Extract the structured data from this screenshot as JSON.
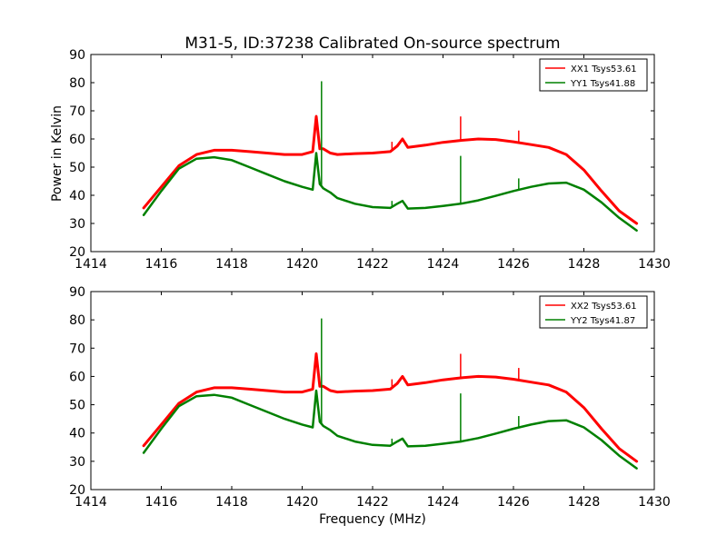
{
  "chart_data": {
    "type": "line",
    "title": "M31-5, ID:37238 Calibrated On-source spectrum",
    "xlabel": "Frequency (MHz)",
    "ylabel": "Power in Kelvin",
    "legend_placement": "top-right",
    "grid": false,
    "colors": {
      "xx": "#ff0000",
      "yy": "#008000"
    },
    "panels": [
      {
        "xlim": [
          1414,
          1430
        ],
        "ylim": [
          20,
          90
        ],
        "xticks": [
          "1414",
          "1416",
          "1418",
          "1420",
          "1422",
          "1424",
          "1426",
          "1428",
          "1430"
        ],
        "yticks": [
          "20",
          "30",
          "40",
          "50",
          "60",
          "70",
          "80",
          "90"
        ],
        "series": [
          {
            "name": "XX1 Tsys53.61",
            "color": "#ff0000",
            "x": [
              1415.5,
              1416,
              1416.5,
              1417,
              1417.5,
              1418,
              1418.5,
              1419,
              1419.5,
              1420,
              1420.3,
              1420.4,
              1420.5,
              1420.6,
              1420.8,
              1421,
              1421.5,
              1422,
              1422.5,
              1422.7,
              1422.85,
              1423,
              1423.5,
              1424,
              1424.5,
              1425,
              1425.5,
              1426,
              1426.5,
              1427,
              1427.5,
              1428,
              1428.5,
              1429,
              1429.5
            ],
            "y": [
              35.5,
              43,
              50.5,
              54.5,
              56,
              56,
              55.5,
              55,
              54.5,
              54.5,
              55.5,
              68,
              56.5,
              56.5,
              55,
              54.5,
              54.8,
              55,
              55.5,
              57.5,
              60,
              57,
              57.8,
              58.8,
              59.5,
              60,
              59.8,
              59,
              58,
              57,
              54.5,
              49,
              41.5,
              34.5,
              30
            ]
          },
          {
            "name": "YY1 Tsys41.88",
            "color": "#008000",
            "x": [
              1415.5,
              1416,
              1416.5,
              1417,
              1417.5,
              1418,
              1418.5,
              1419,
              1419.5,
              1420,
              1420.3,
              1420.4,
              1420.5,
              1420.6,
              1420.8,
              1421,
              1421.5,
              1422,
              1422.5,
              1422.7,
              1422.85,
              1423,
              1423.5,
              1424,
              1424.5,
              1425,
              1425.5,
              1426,
              1426.5,
              1427,
              1427.5,
              1428,
              1428.5,
              1429,
              1429.5
            ],
            "y": [
              33,
              41.5,
              49.5,
              53,
              53.5,
              52.5,
              50,
              47.5,
              45,
              43,
              42,
              55,
              44,
              42.5,
              41,
              39,
              37,
              35.8,
              35.5,
              37,
              38,
              35.3,
              35.5,
              36.2,
              37,
              38.2,
              39.8,
              41.5,
              43,
              44.2,
              44.5,
              42,
              37.5,
              32,
              27.5
            ]
          }
        ],
        "spikes": [
          {
            "series": 0,
            "x": 1420.4,
            "top": 68.5
          },
          {
            "series": 0,
            "x": 1422.55,
            "top": 59
          },
          {
            "series": 0,
            "x": 1424.5,
            "top": 68
          },
          {
            "series": 0,
            "x": 1426.15,
            "top": 63
          },
          {
            "series": 1,
            "x": 1420.55,
            "top": 80.5
          },
          {
            "series": 1,
            "x": 1422.55,
            "top": 38
          },
          {
            "series": 1,
            "x": 1424.5,
            "top": 54
          },
          {
            "series": 1,
            "x": 1426.15,
            "top": 46
          }
        ]
      },
      {
        "xlim": [
          1414,
          1430
        ],
        "ylim": [
          20,
          90
        ],
        "xticks": [
          "1414",
          "1416",
          "1418",
          "1420",
          "1422",
          "1424",
          "1426",
          "1428",
          "1430"
        ],
        "yticks": [
          "20",
          "30",
          "40",
          "50",
          "60",
          "70",
          "80",
          "90"
        ],
        "series": [
          {
            "name": "XX2 Tsys53.61",
            "color": "#ff0000",
            "x": [
              1415.5,
              1416,
              1416.5,
              1417,
              1417.5,
              1418,
              1418.5,
              1419,
              1419.5,
              1420,
              1420.3,
              1420.4,
              1420.5,
              1420.6,
              1420.8,
              1421,
              1421.5,
              1422,
              1422.5,
              1422.7,
              1422.85,
              1423,
              1423.5,
              1424,
              1424.5,
              1425,
              1425.5,
              1426,
              1426.5,
              1427,
              1427.5,
              1428,
              1428.5,
              1429,
              1429.5
            ],
            "y": [
              35.5,
              43,
              50.5,
              54.5,
              56,
              56,
              55.5,
              55,
              54.5,
              54.5,
              55.5,
              68,
              56.5,
              56.5,
              55,
              54.5,
              54.8,
              55,
              55.5,
              57.5,
              60,
              57,
              57.8,
              58.8,
              59.5,
              60,
              59.8,
              59,
              58,
              57,
              54.5,
              49,
              41.5,
              34.5,
              30
            ]
          },
          {
            "name": "YY2 Tsys41.87",
            "color": "#008000",
            "x": [
              1415.5,
              1416,
              1416.5,
              1417,
              1417.5,
              1418,
              1418.5,
              1419,
              1419.5,
              1420,
              1420.3,
              1420.4,
              1420.5,
              1420.6,
              1420.8,
              1421,
              1421.5,
              1422,
              1422.5,
              1422.7,
              1422.85,
              1423,
              1423.5,
              1424,
              1424.5,
              1425,
              1425.5,
              1426,
              1426.5,
              1427,
              1427.5,
              1428,
              1428.5,
              1429,
              1429.5
            ],
            "y": [
              33,
              41.5,
              49.5,
              53,
              53.5,
              52.5,
              50,
              47.5,
              45,
              43,
              42,
              55,
              44,
              42.5,
              41,
              39,
              37,
              35.8,
              35.5,
              37,
              38,
              35.3,
              35.5,
              36.2,
              37,
              38.2,
              39.8,
              41.5,
              43,
              44.2,
              44.5,
              42,
              37.5,
              32,
              27.5
            ]
          }
        ],
        "spikes": [
          {
            "series": 0,
            "x": 1420.4,
            "top": 68.5
          },
          {
            "series": 0,
            "x": 1422.55,
            "top": 59
          },
          {
            "series": 0,
            "x": 1424.5,
            "top": 68
          },
          {
            "series": 0,
            "x": 1426.15,
            "top": 63
          },
          {
            "series": 1,
            "x": 1420.55,
            "top": 80.5
          },
          {
            "series": 1,
            "x": 1422.55,
            "top": 38
          },
          {
            "series": 1,
            "x": 1424.5,
            "top": 54
          },
          {
            "series": 1,
            "x": 1426.15,
            "top": 46
          }
        ]
      }
    ]
  }
}
